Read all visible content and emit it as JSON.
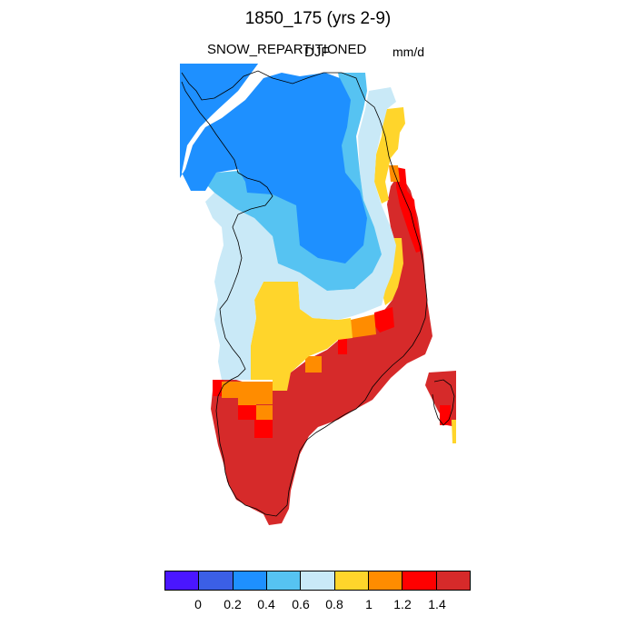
{
  "title": "1850_175 (yrs 2-9)",
  "variable": "SNOW_REPARTITIONED",
  "season": "DJF",
  "units": "mm/d",
  "colorbar": {
    "colors": [
      "#4a16ff",
      "#3b5fe6",
      "#1e90ff",
      "#56c3f2",
      "#c9e9f7",
      "#ffd52b",
      "#ff8c00",
      "#ff0000",
      "#d62a2a"
    ],
    "tick_labels": [
      "0",
      "0.2",
      "0.4",
      "0.6",
      "0.8",
      "1",
      "1.2",
      "1.4"
    ]
  },
  "map": {
    "region": "Greenland",
    "colors": {
      "dark_blue": "#1e90ff",
      "medium_blue": "#56c3f2",
      "light_blue": "#c9e9f7",
      "yellow": "#ffd52b",
      "orange": "#ff8c00",
      "red": "#ff0000",
      "dark_red": "#d62a2a",
      "coastline": "#000000"
    }
  }
}
